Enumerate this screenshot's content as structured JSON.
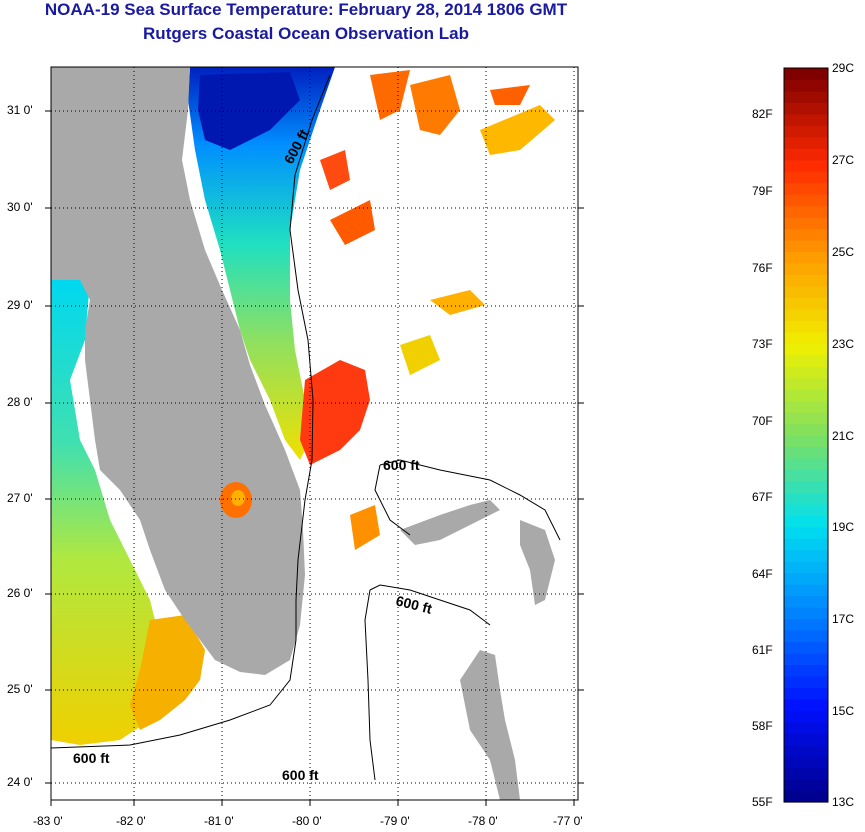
{
  "title_line1": "NOAA-19 Sea Surface Temperature:  February 28, 2014 1806 GMT",
  "title_line2": "Rutgers Coastal Ocean Observation Lab",
  "map": {
    "lat_labels": [
      "31 0'",
      "30 0'",
      "29 0'",
      "28 0'",
      "27 0'",
      "26 0'",
      "25 0'",
      "24 0'"
    ],
    "lon_labels": [
      "-83 0'",
      "-82 0'",
      "-81 0'",
      "-80 0'",
      "-79 0'",
      "-78 0'",
      "-77 0'"
    ],
    "contour_labels": [
      "600 ft",
      "600 ft",
      "600 ft",
      "600 ft",
      "600 ft"
    ]
  },
  "colorbar": {
    "fahrenheit_labels": [
      "82F",
      "79F",
      "76F",
      "73F",
      "70F",
      "67F",
      "64F",
      "61F",
      "58F",
      "55F"
    ],
    "celsius_labels": [
      "29C",
      "27C",
      "25C",
      "23C",
      "21C",
      "19C",
      "17C",
      "15C",
      "13C"
    ],
    "colors": {
      "c13": "#00008f",
      "c15": "#0010ff",
      "c17": "#0080ff",
      "c19": "#00e0f0",
      "c21": "#7fe060",
      "c23": "#f0f000",
      "c25": "#ff9a00",
      "c27": "#ff2a00",
      "c29": "#800000"
    }
  },
  "colors": {
    "land": "#a9a9a9",
    "grid": "#000000",
    "title": "#1a1aa0"
  }
}
